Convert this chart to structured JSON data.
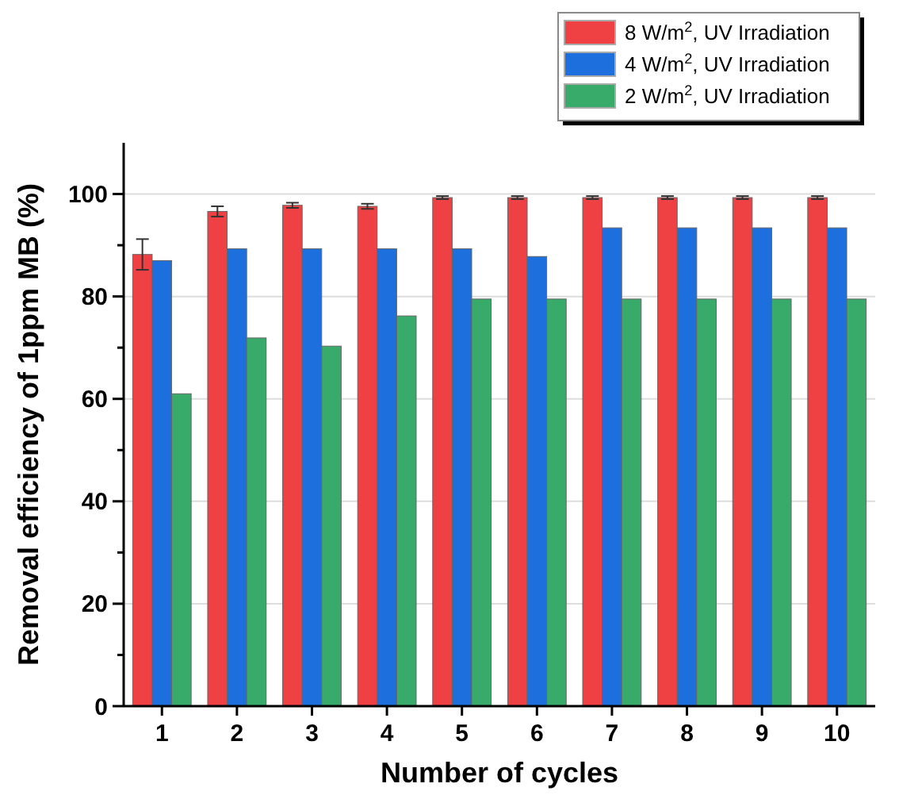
{
  "chart_data": {
    "type": "bar",
    "xlabel": "Number of cycles",
    "ylabel": "Removal efficiency of 1ppm MB (%)",
    "categories": [
      "1",
      "2",
      "3",
      "4",
      "5",
      "6",
      "7",
      "8",
      "9",
      "10"
    ],
    "series": [
      {
        "name": "8 W/m$^{2}$, UV Irradiation",
        "color": "#ef4143",
        "values": [
          88.2,
          96.6,
          97.8,
          97.6,
          99.3,
          99.3,
          99.3,
          99.3,
          99.3,
          99.3
        ],
        "errors": [
          3,
          1,
          0.5,
          0.5,
          0.3,
          0.3,
          0.3,
          0.3,
          0.3,
          0.3
        ]
      },
      {
        "name": "4 W/m$^{2}$, UV Irradiation",
        "color": "#1c6fdc",
        "values": [
          87,
          89.3,
          89.3,
          89.3,
          89.3,
          87.8,
          93.4,
          93.4,
          93.4,
          93.4
        ]
      },
      {
        "name": "2 W/m$^{2}$, UV Irradiation",
        "color": "#38aa6a",
        "values": [
          61,
          71.9,
          70.3,
          76.2,
          79.5,
          79.5,
          79.5,
          79.5,
          79.5,
          79.5
        ]
      }
    ],
    "ylim": [
      0,
      110
    ],
    "yticks": [
      0,
      {
        "value": 10,
        "label": null
      },
      20,
      {
        "value": 30,
        "label": null
      },
      40,
      {
        "value": 50,
        "label": null
      },
      60,
      {
        "value": 70,
        "label": null
      },
      80,
      {
        "value": 90,
        "label": null
      },
      100
    ],
    "grid": "y",
    "legend": "top right"
  }
}
